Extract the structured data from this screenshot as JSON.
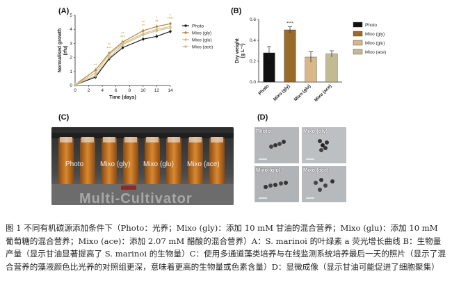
{
  "panels": {
    "a": "(A)",
    "b": "(B)",
    "c": "(C)",
    "d": "(D)"
  },
  "chart_data": [
    {
      "type": "line",
      "xlabel": "Time (days)",
      "ylabel_line1": "Normalised growth",
      "ylabel_line2": "(rfu)",
      "xlim": [
        0,
        14
      ],
      "ylim": [
        0,
        5
      ],
      "xticks": [
        0,
        2,
        4,
        6,
        8,
        10,
        12,
        14
      ],
      "yticks": [
        0,
        1,
        2,
        3,
        4,
        5
      ],
      "x": [
        0,
        3,
        5,
        7,
        10,
        12,
        14
      ],
      "series": [
        {
          "name": "Photo",
          "color": "#1a1a1a",
          "values": [
            0.05,
            0.6,
            1.9,
            2.7,
            3.3,
            3.5,
            3.85
          ]
        },
        {
          "name": "Mixo (gly)",
          "color": "#b8862f",
          "values": [
            0.05,
            1.1,
            2.3,
            3.1,
            3.9,
            4.2,
            4.4
          ]
        },
        {
          "name": "Mixo (glu)",
          "color": "#d9b98a",
          "values": [
            0.05,
            0.9,
            2.2,
            3.0,
            3.7,
            4.0,
            4.2
          ]
        },
        {
          "name": "Mixo (ace)",
          "color": "#c7c094",
          "values": [
            0.05,
            0.7,
            2.0,
            2.9,
            3.6,
            3.9,
            4.1
          ]
        }
      ],
      "annotations": [
        "**",
        "**",
        "**\n***",
        "**\n***",
        "**\n**",
        "*\n**",
        "*\n****"
      ]
    },
    {
      "type": "bar",
      "ylabel_line1": "Dry weight",
      "ylabel_line2": "(g L⁻¹)",
      "ylim": [
        0,
        0.6
      ],
      "yticks": [
        "0.0",
        "0.2",
        "0.4",
        "0.6"
      ],
      "categories": [
        "Photo",
        "Mixo (gly)",
        "Mixo (glu)",
        "Mixo (ace)"
      ],
      "values": [
        0.28,
        0.5,
        0.24,
        0.27
      ],
      "errors": [
        0.06,
        0.03,
        0.05,
        0.03
      ],
      "colors": [
        "#111111",
        "#9a6a2a",
        "#d8b88a",
        "#c2bb92"
      ],
      "significance": "****"
    }
  ],
  "photo_c": {
    "labels": [
      "Photo",
      "Mixo (gly)",
      "Mixo (glu)",
      "Mixo (ace)"
    ],
    "brand": "Multi-Cultivator"
  },
  "photo_d": {
    "labels": [
      "Photo",
      "Mixo (gly)",
      "Mixo (glu)",
      "Mixo (ace)"
    ]
  },
  "caption": "图 1 不同有机碳源添加条件下（Photo：光养；Mixo (gly)：添加 10 mM 甘油的混合营养；Mixo (glu)：添加 10 mM 葡萄糖的混合营养；Mixo (ace)：添加 2.07 mM 醋酸的混合营养）A：S. marinoi 的叶绿素 a 荧光增长曲线 B：生物量产量（显示甘油显著提高了 S. marinoi 的生物量）C：使用多通道藻类培养与在线监测系统培养最后一天的照片（显示了混合营养的藻液颜色比光养的对照组更深，意味着更高的生物量或色素含量）D：显微成像（显示甘油可能促进了细胞聚集）"
}
